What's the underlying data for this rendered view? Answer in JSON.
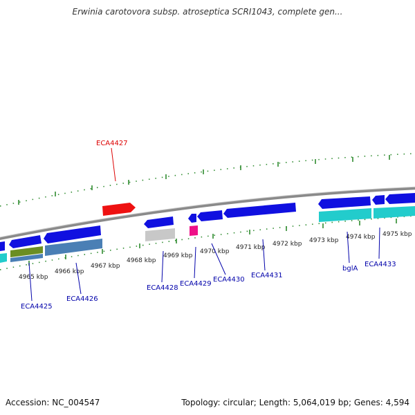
{
  "title": "Erwinia carotovora subsp. atroseptica SCRI1043, complete gen...",
  "footer": {
    "accession": "Accession: NC_004547",
    "summary": "Topology: circular; Length: 5,064,019 bp; Genes: 4,594"
  },
  "colors": {
    "backbone": "#8a8a8a",
    "tick": "#2e8b2e",
    "forward_gene": "#1010e0",
    "highlight_gene": "#ee1111",
    "rna_gene": "#ee1188",
    "cyan_gene": "#22cccc",
    "label_blue": "#0000aa",
    "label_red": "#dd0000"
  },
  "kbp_labels": [
    "4965 kbp",
    "4966 kbp",
    "4967 kbp",
    "4968 kbp",
    "4969 kbp",
    "4970 kbp",
    "4971 kbp",
    "4972 kbp",
    "4973 kbp",
    "4974 kbp",
    "4975 kbp"
  ],
  "gene_labels": {
    "ECA4427": "ECA4427",
    "ECA4425": "ECA4425",
    "ECA4426": "ECA4426",
    "ECA4428": "ECA4428",
    "ECA4429": "ECA4429",
    "ECA4430": "ECA4430",
    "ECA4431": "ECA4431",
    "bglA": "bglA",
    "ECA4433": "ECA4433"
  }
}
